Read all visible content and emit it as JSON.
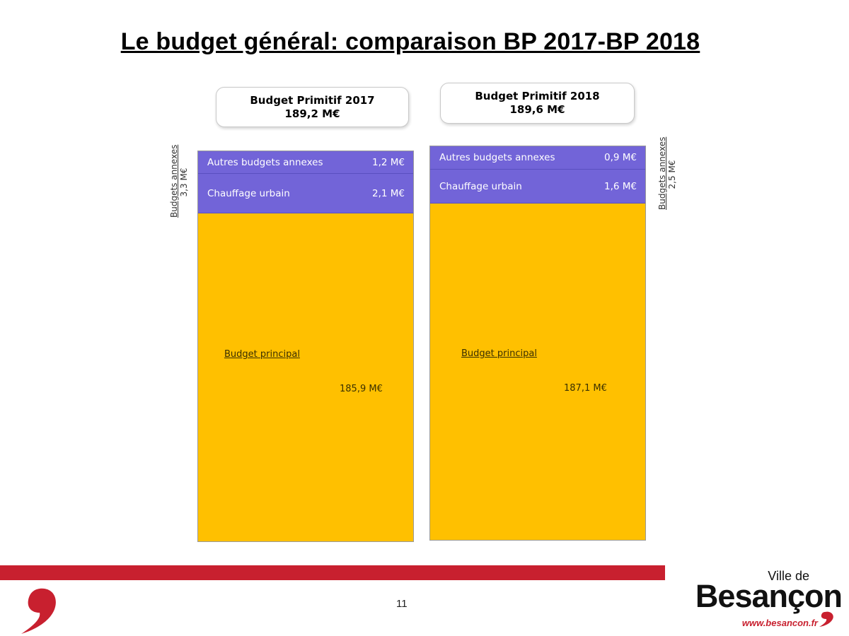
{
  "title": "Le budget général: comparaison BP 2017-BP 2018",
  "page_number": "11",
  "brand": {
    "ville": "Ville de",
    "name": "Besançon",
    "url": "www.besancon.fr"
  },
  "colors": {
    "main": "#ffc000",
    "annexes": "#7264d8",
    "bar_red": "#c8202f"
  },
  "chart_data": {
    "type": "bar",
    "stacked": true,
    "categories": [
      "Budget Primitif 2017",
      "Budget Primitif 2018"
    ],
    "columns": [
      {
        "header_title": "Budget Primitif 2017",
        "header_total": "189,2 M€",
        "total": 189.2,
        "side_label": {
          "title": "Budgets annexes",
          "value": "3,3 M€"
        },
        "segments": [
          {
            "label": "Autres budgets annexes",
            "value_text": "1,2 M€",
            "value": 1.2
          },
          {
            "label": "Chauffage urbain",
            "value_text": "2,1 M€",
            "value": 2.1
          },
          {
            "label": "Budget principal",
            "value_text": "185,9 M€",
            "value": 185.9
          }
        ]
      },
      {
        "header_title": "Budget Primitif 2018",
        "header_total": "189,6 M€",
        "total": 189.6,
        "side_label": {
          "title": "Budgets annexes",
          "value": "2,5 M€"
        },
        "segments": [
          {
            "label": "Autres budgets annexes",
            "value_text": "0,9 M€",
            "value": 0.9
          },
          {
            "label": "Chauffage urbain",
            "value_text": "1,6 M€",
            "value": 1.6
          },
          {
            "label": "Budget principal",
            "value_text": "187,1 M€",
            "value": 187.1
          }
        ]
      }
    ]
  }
}
